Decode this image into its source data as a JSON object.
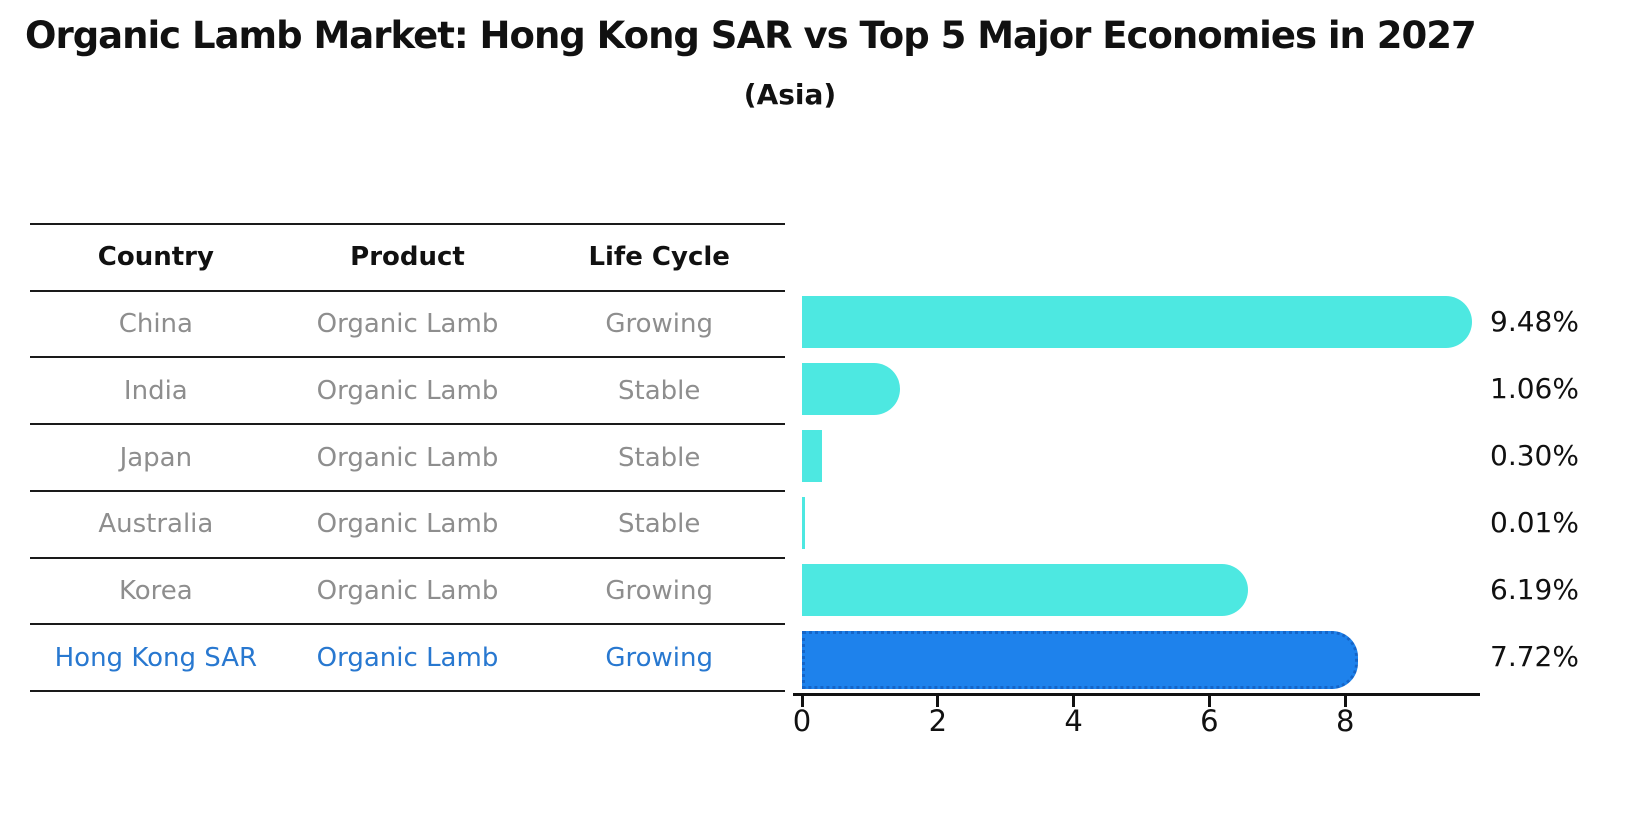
{
  "header": {
    "title": "Organic Lamb Market: Hong Kong SAR vs Top 5 Major Economies in 2027",
    "subtitle": "(Asia)"
  },
  "table": {
    "columns": [
      "Country",
      "Product",
      "Life Cycle"
    ],
    "rows": [
      {
        "country": "China",
        "product": "Organic Lamb",
        "life_cycle": "Growing",
        "highlight": false
      },
      {
        "country": "India",
        "product": "Organic Lamb",
        "life_cycle": "Stable",
        "highlight": false
      },
      {
        "country": "Japan",
        "product": "Organic Lamb",
        "life_cycle": "Stable",
        "highlight": false
      },
      {
        "country": "Australia",
        "product": "Organic Lamb",
        "life_cycle": "Stable",
        "highlight": false
      },
      {
        "country": "Korea",
        "product": "Organic Lamb",
        "life_cycle": "Growing",
        "highlight": false
      },
      {
        "country": "Hong Kong SAR",
        "product": "Organic Lamb",
        "life_cycle": "Growing",
        "highlight": true
      }
    ]
  },
  "chart_data": {
    "type": "bar",
    "orientation": "horizontal",
    "title": "Organic Lamb Market: Hong Kong SAR vs Top 5 Major Economies in 2027",
    "subtitle": "(Asia)",
    "categories": [
      "China",
      "India",
      "Japan",
      "Australia",
      "Korea",
      "Hong Kong SAR"
    ],
    "values": [
      9.48,
      1.06,
      0.3,
      0.01,
      6.19,
      7.72
    ],
    "value_labels": [
      "9.48%",
      "1.06%",
      "0.30%",
      "0.01%",
      "6.19%",
      "7.72%"
    ],
    "highlight_index": 5,
    "bar_color": "#4DE8E1",
    "highlight_color": "#1E82EC",
    "text_gray": "#8e8e8e",
    "highlight_text_color": "#2878d0",
    "xlim": [
      0,
      9.95
    ],
    "x_ticks": [
      "0",
      "2",
      "4",
      "6",
      "8"
    ],
    "grid": false,
    "legend": false
  }
}
